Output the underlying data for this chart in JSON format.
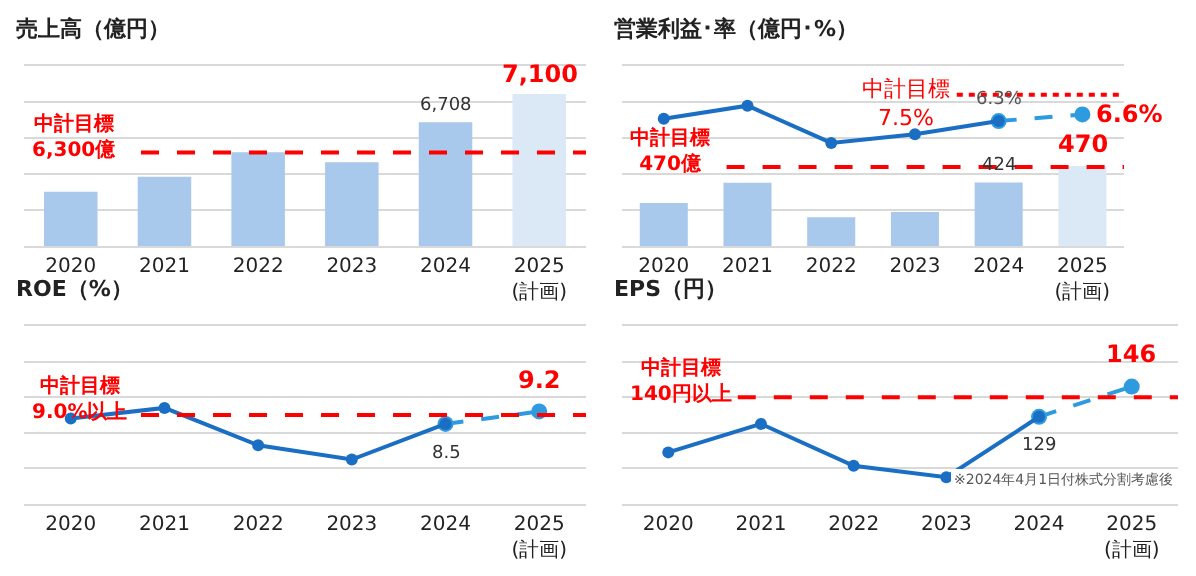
{
  "chart_data": [
    {
      "type": "bar",
      "title": "売上高（億円）",
      "categories": [
        "2020",
        "2021",
        "2022",
        "2023",
        "2024",
        "2025\n(計画)"
      ],
      "values": [
        5740,
        5950,
        6290,
        6150,
        6708,
        7100
      ],
      "colors": [
        "#a8c8ec",
        "#a8c8ec",
        "#a8c8ec",
        "#a8c8ec",
        "#a8c8ec",
        "#dbe8f6"
      ],
      "value_labels": [
        null,
        null,
        null,
        null,
        "6,708",
        "7,100"
      ],
      "ylim": [
        5000,
        7500
      ],
      "yticks": [
        {
          "value": 5500,
          "label": null
        },
        {
          "value": 6000,
          "label": null
        },
        {
          "value": 6500,
          "label": null
        },
        {
          "value": 7000,
          "label": null
        }
      ],
      "grid": "y",
      "tick_labels": "x",
      "ref_lines": [
        {
          "axis": "y",
          "value": 6300,
          "label": "中計目標\n6,300億",
          "color": "#ff0000",
          "line_style": "dashed"
        }
      ]
    },
    {
      "type": "bar",
      "title": "営業利益･率（億円･%）",
      "categories": [
        "2020",
        "2021",
        "2022",
        "2023",
        "2024",
        "2025\n(計画)"
      ],
      "values": [
        367,
        423,
        327,
        342,
        424,
        470
      ],
      "colors": [
        "#a8c8ec",
        "#a8c8ec",
        "#a8c8ec",
        "#a8c8ec",
        "#a8c8ec",
        "#dbe8f6"
      ],
      "value_labels": [
        null,
        null,
        null,
        null,
        "424",
        "470"
      ],
      "ylim": [
        250,
        750
      ],
      "yticks": [
        {
          "value": 350,
          "label": null
        },
        {
          "value": 450,
          "label": null
        },
        {
          "value": 550,
          "label": null
        },
        {
          "value": 650,
          "label": null
        }
      ],
      "y2lim": [
        0.6,
        8.8
      ],
      "grid": "y",
      "tick_labels": "x",
      "marker": "circle",
      "series": [
        {
          "type": "line",
          "axis": "y2",
          "color": "#2e9be0",
          "line_style": "dashed",
          "values": [
            null,
            null,
            null,
            null,
            6.3,
            6.6
          ],
          "value_labels": [
            null,
            null,
            null,
            null,
            null,
            "6.6%"
          ]
        },
        {
          "type": "line",
          "axis": "y2",
          "color": "#1a6fc4",
          "line_style": "solid",
          "values": [
            6.4,
            7.0,
            5.3,
            5.7,
            6.3,
            null
          ],
          "value_labels": [
            null,
            null,
            null,
            null,
            "6.3%",
            null
          ]
        }
      ],
      "ref_lines": [
        {
          "axis": "y",
          "value": 470,
          "label": "中計目標\n470億",
          "color": "#ff0000",
          "line_style": "dashed"
        },
        {
          "axis": "y2",
          "value": 7.5,
          "label": "中計目標\n7.5%",
          "color": "#ff0000",
          "line_style": "dotted"
        }
      ]
    },
    {
      "type": "line",
      "title": "ROE（%）",
      "categories": [
        "2020",
        "2021",
        "2022",
        "2023",
        "2024",
        "2025\n(計画)"
      ],
      "ylim": [
        4,
        14
      ],
      "yticks": [
        {
          "value": 6,
          "label": null
        },
        {
          "value": 8,
          "label": null
        },
        {
          "value": 10,
          "label": null
        },
        {
          "value": 12,
          "label": null
        }
      ],
      "grid": "y",
      "tick_labels": "x",
      "marker": "circle",
      "series": [
        {
          "color": "#2e9be0",
          "line_style": "dashed",
          "values": [
            null,
            null,
            null,
            null,
            8.5,
            9.2
          ],
          "value_labels": [
            null,
            null,
            null,
            null,
            null,
            "9.2"
          ]
        },
        {
          "color": "#1a6fc4",
          "line_style": "solid",
          "values": [
            8.8,
            9.4,
            7.3,
            6.5,
            8.5,
            null
          ],
          "value_labels": [
            null,
            null,
            null,
            null,
            "8.5",
            null
          ]
        }
      ],
      "ref_lines": [
        {
          "axis": "y",
          "value": 9.0,
          "label": "中計目標\n9.0%以上",
          "color": "#ff0000",
          "line_style": "dashed"
        }
      ]
    },
    {
      "type": "line",
      "title": "EPS（円）",
      "categories": [
        "2020",
        "2021",
        "2022",
        "2023",
        "2024",
        "2025\n(計画)"
      ],
      "ylim": [
        80,
        180
      ],
      "yticks": [
        {
          "value": 100,
          "label": null
        },
        {
          "value": 120,
          "label": null
        },
        {
          "value": 140,
          "label": null
        },
        {
          "value": 160,
          "label": null
        }
      ],
      "grid": "y",
      "tick_labels": "x",
      "marker": "circle",
      "series": [
        {
          "color": "#2e9be0",
          "line_style": "dashed",
          "values": [
            null,
            null,
            null,
            null,
            129,
            146
          ],
          "value_labels": [
            null,
            null,
            null,
            null,
            null,
            "146"
          ]
        },
        {
          "color": "#1a6fc4",
          "line_style": "solid",
          "values": [
            109,
            125,
            101.5,
            95,
            129,
            null
          ],
          "value_labels": [
            null,
            null,
            null,
            null,
            "129",
            null
          ]
        }
      ],
      "ref_lines": [
        {
          "axis": "y",
          "value": 140,
          "label": "中計目標\n140円以上",
          "color": "#ff0000",
          "line_style": "dashed"
        }
      ],
      "annotations": [
        "※2024年4月1日付株式分割考慮後"
      ]
    }
  ]
}
